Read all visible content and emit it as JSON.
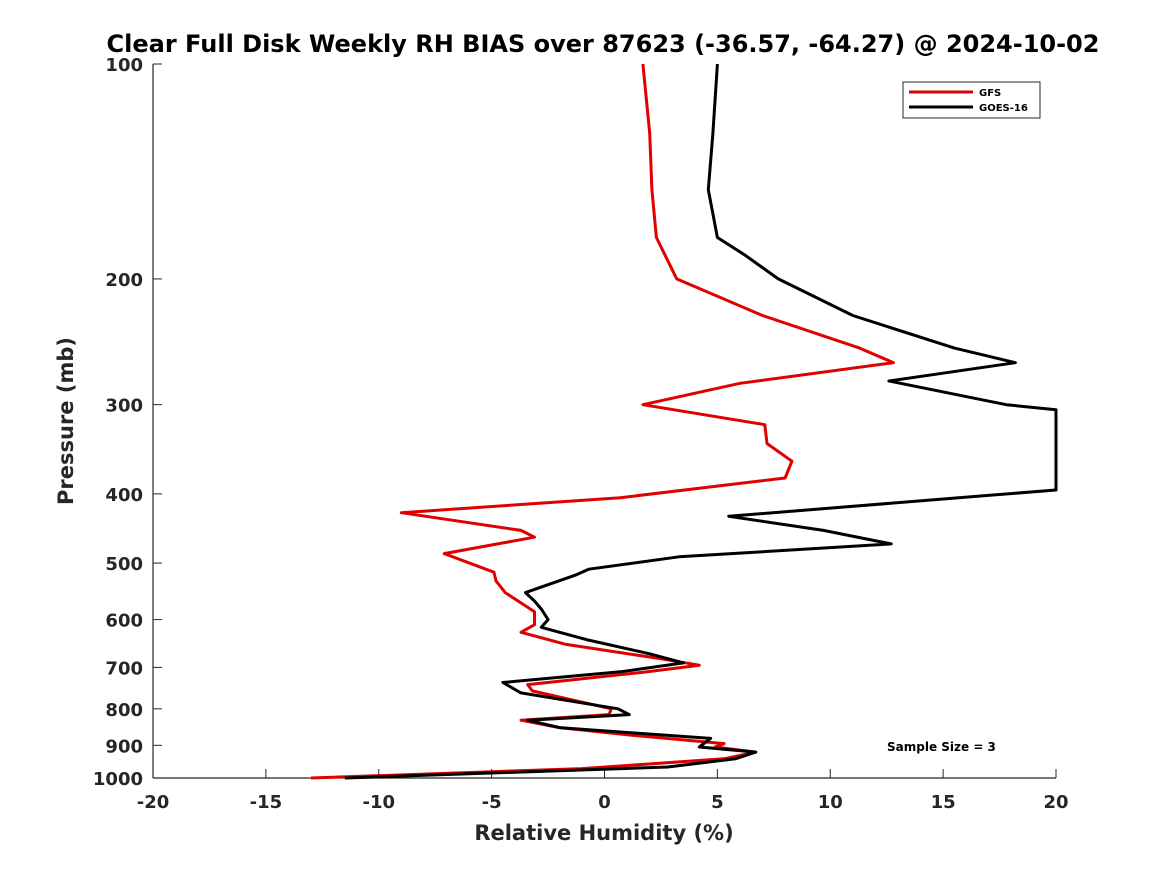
{
  "chart_data": {
    "type": "line",
    "title": "Clear Full Disk Weekly RH BIAS over 87623 (-36.57, -64.27) @ 2024-10-02",
    "xlabel": "Relative Humidity (%)",
    "ylabel": "Pressure (mb)",
    "xlim": [
      -20,
      20
    ],
    "ylim": [
      100,
      1000
    ],
    "y_scale": "log",
    "y_reversed": true,
    "grid": false,
    "legend_position": "top-right",
    "x_ticks": [
      -20,
      -15,
      -10,
      -5,
      0,
      5,
      10,
      15,
      20
    ],
    "x_tick_labels": [
      "-20",
      "-15",
      "-10",
      "-5",
      "0",
      "5",
      "10",
      "15",
      "20"
    ],
    "y_ticks": [
      100,
      200,
      300,
      400,
      500,
      600,
      700,
      800,
      900,
      1000
    ],
    "y_tick_labels": [
      "100",
      "200",
      "300",
      "400",
      "500",
      "600",
      "700",
      "800",
      "900",
      "1000"
    ],
    "annotation": "Sample Size = 3",
    "series": [
      {
        "name": "GFS",
        "color": "#e00000",
        "points": [
          [
            1.7,
            100
          ],
          [
            2.0,
            125
          ],
          [
            2.1,
            150
          ],
          [
            2.3,
            175
          ],
          [
            3.2,
            200
          ],
          [
            7.0,
            225
          ],
          [
            11.3,
            250
          ],
          [
            12.8,
            262
          ],
          [
            6.0,
            280
          ],
          [
            1.7,
            300
          ],
          [
            7.1,
            320
          ],
          [
            7.2,
            340
          ],
          [
            8.3,
            360
          ],
          [
            8.0,
            380
          ],
          [
            0.7,
            405
          ],
          [
            -9.0,
            425
          ],
          [
            -3.7,
            450
          ],
          [
            -3.1,
            460
          ],
          [
            -7.1,
            485
          ],
          [
            -4.9,
            515
          ],
          [
            -4.8,
            530
          ],
          [
            -4.4,
            550
          ],
          [
            -3.1,
            585
          ],
          [
            -3.1,
            610
          ],
          [
            -3.7,
            625
          ],
          [
            -1.7,
            650
          ],
          [
            2.4,
            680
          ],
          [
            4.2,
            695
          ],
          [
            1.9,
            710
          ],
          [
            -3.4,
            740
          ],
          [
            -3.2,
            755
          ],
          [
            0.3,
            800
          ],
          [
            0.2,
            815
          ],
          [
            -3.7,
            830
          ],
          [
            -2.0,
            850
          ],
          [
            1.0,
            870
          ],
          [
            5.3,
            895
          ],
          [
            4.9,
            905
          ],
          [
            6.7,
            920
          ],
          [
            5.3,
            940
          ],
          [
            -1.0,
            970
          ],
          [
            -13.0,
            1000
          ]
        ]
      },
      {
        "name": "GOES-16",
        "color": "#000000",
        "points": [
          [
            5.0,
            100
          ],
          [
            4.8,
            125
          ],
          [
            4.6,
            150
          ],
          [
            5.0,
            175
          ],
          [
            6.2,
            185
          ],
          [
            7.7,
            200
          ],
          [
            11.0,
            225
          ],
          [
            15.5,
            250
          ],
          [
            18.2,
            262
          ],
          [
            12.6,
            278
          ],
          [
            17.8,
            300
          ],
          [
            20.0,
            305
          ],
          [
            20.0,
            395
          ],
          [
            17.0,
            402
          ],
          [
            5.5,
            430
          ],
          [
            9.7,
            450
          ],
          [
            12.7,
            470
          ],
          [
            3.3,
            490
          ],
          [
            -0.7,
            510
          ],
          [
            -1.3,
            520
          ],
          [
            -3.5,
            550
          ],
          [
            -3.1,
            565
          ],
          [
            -2.8,
            580
          ],
          [
            -2.5,
            600
          ],
          [
            -2.8,
            615
          ],
          [
            -0.8,
            640
          ],
          [
            2.0,
            670
          ],
          [
            3.5,
            690
          ],
          [
            0.7,
            710
          ],
          [
            -4.5,
            735
          ],
          [
            -3.7,
            760
          ],
          [
            0.6,
            800
          ],
          [
            1.1,
            815
          ],
          [
            -3.4,
            830
          ],
          [
            -2.0,
            850
          ],
          [
            4.7,
            880
          ],
          [
            4.2,
            905
          ],
          [
            6.7,
            920
          ],
          [
            5.8,
            940
          ],
          [
            2.8,
            965
          ],
          [
            -11.5,
            1000
          ]
        ]
      }
    ]
  }
}
